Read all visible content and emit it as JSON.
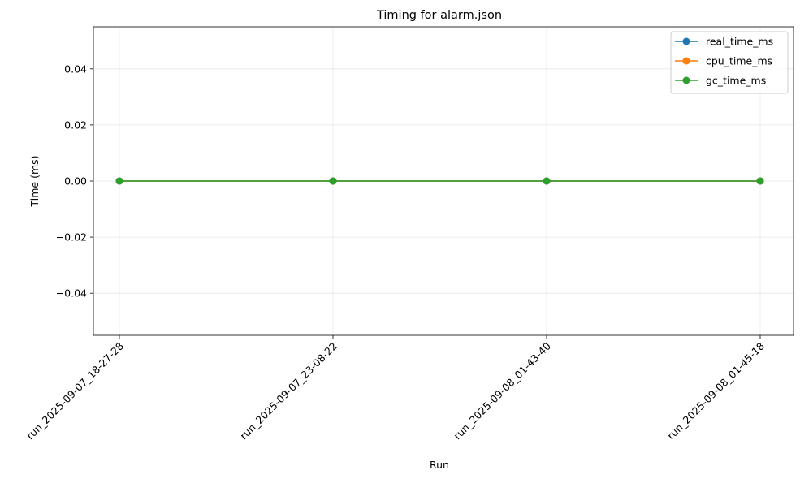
{
  "chart_data": {
    "type": "line",
    "title": "Timing for alarm.json",
    "xlabel": "Run",
    "ylabel": "Time (ms)",
    "categories": [
      "run_2025-09-07_18-27-28",
      "run_2025-09-07_23-08-22",
      "run_2025-09-08_01-43-40",
      "run_2025-09-08_01-45-18"
    ],
    "ylim": [
      -0.055,
      0.055
    ],
    "yticks": [
      -0.04,
      -0.02,
      0.0,
      0.02,
      0.04
    ],
    "ytick_labels": [
      "−0.04",
      "−0.02",
      "0.00",
      "0.02",
      "0.04"
    ],
    "grid": true,
    "legend_position": "top-right",
    "series": [
      {
        "name": "real_time_ms",
        "color": "#1f77b4",
        "values": [
          0,
          0,
          0,
          0
        ]
      },
      {
        "name": "cpu_time_ms",
        "color": "#ff7f0e",
        "values": [
          0,
          0,
          0,
          0
        ]
      },
      {
        "name": "gc_time_ms",
        "color": "#2ca02c",
        "values": [
          0,
          0,
          0,
          0
        ]
      }
    ]
  }
}
